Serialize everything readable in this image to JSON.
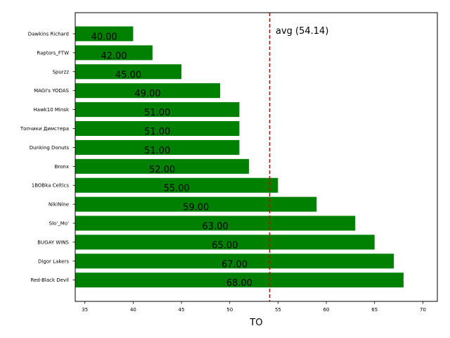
{
  "chart_data": {
    "type": "bar",
    "orientation": "horizontal",
    "title": "",
    "xlabel": "TO",
    "ylabel": "",
    "xlim": [
      34,
      71.5
    ],
    "xticks": [
      35,
      40,
      45,
      50,
      55,
      60,
      65,
      70
    ],
    "grid": false,
    "bar_color": "#008000",
    "categories": [
      "Dawkins Richard",
      "Raptors_FTW",
      "Spurzz",
      "MAGI's YODAS",
      "Hawk10 Minsk",
      "Топчики Димстера",
      "Dunking Donuts",
      "Bronx",
      "1BOBka Celtics",
      "NikiNine",
      "Slo'_Mo'",
      "BUGAY WINS",
      "Digor Lakers",
      "Red-Black Devil"
    ],
    "values": [
      40,
      42,
      45,
      49,
      51,
      51,
      51,
      52,
      55,
      59,
      63,
      65,
      67,
      68
    ],
    "value_labels": [
      "40.00",
      "42.00",
      "45.00",
      "49.00",
      "51.00",
      "51.00",
      "51.00",
      "52.00",
      "55.00",
      "59.00",
      "63.00",
      "65.00",
      "67.00",
      "68.00"
    ],
    "average": {
      "value": 54.14,
      "label": "avg (54.14)",
      "color": "#dd0000"
    }
  }
}
